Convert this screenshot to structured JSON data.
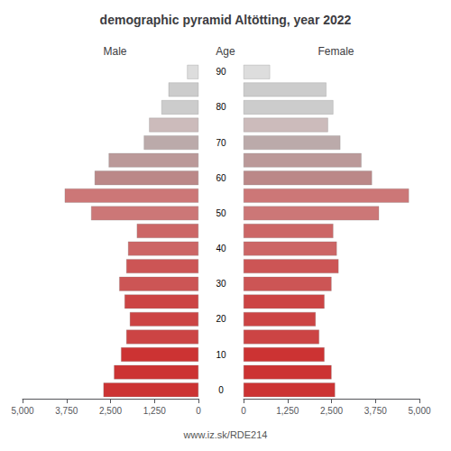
{
  "chart_data": {
    "type": "bar",
    "orientation": "horizontal",
    "title": "demographic pyramid Altötting, year 2022",
    "ylabel": "Age",
    "annotations": [
      "www.iz.sk/RDE214"
    ],
    "categories": [
      "0",
      null,
      "10",
      null,
      "20",
      null,
      "30",
      null,
      "40",
      null,
      "50",
      null,
      "60",
      null,
      "70",
      null,
      "80",
      null,
      "90"
    ],
    "series": [
      {
        "name": "Male",
        "values": [
          2700,
          2400,
          2200,
          2050,
          1950,
          2100,
          2250,
          2050,
          2000,
          1750,
          3050,
          3800,
          2950,
          2550,
          1550,
          1400,
          1050,
          850,
          320
        ]
      },
      {
        "name": "Female",
        "values": [
          2600,
          2500,
          2300,
          2150,
          2050,
          2300,
          2500,
          2700,
          2650,
          2550,
          3850,
          4700,
          3650,
          3350,
          2750,
          2400,
          2550,
          2350,
          750
        ]
      }
    ],
    "colors": [
      "#cc3333",
      "#cc3333",
      "#cc3333",
      "#cc4444",
      "#cc4444",
      "#cc4444",
      "#cc5555",
      "#cc5555",
      "#cc6666",
      "#cc6666",
      "#cc7777",
      "#cc7777",
      "#bb8888",
      "#bb9999",
      "#bbaaaa",
      "#ccbbbb",
      "#cccccc",
      "#cccccc",
      "#dddddd"
    ],
    "xlim": [
      0,
      5000
    ],
    "xticks": [
      0,
      1250,
      2500,
      3750,
      5000
    ],
    "grid": false
  }
}
